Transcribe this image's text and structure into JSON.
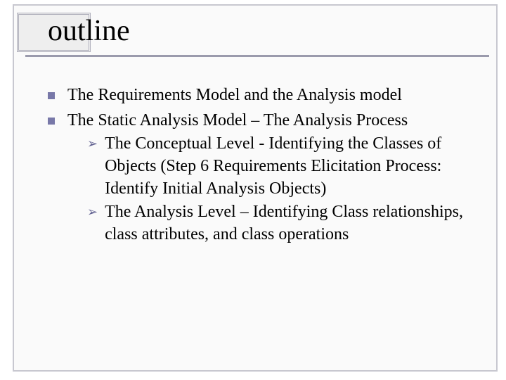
{
  "slide": {
    "title": "outline",
    "bullets": [
      {
        "text": "The Requirements Model and the Analysis model"
      },
      {
        "text": "The Static Analysis Model – The Analysis Process",
        "children": [
          {
            "text": "The Conceptual Level - Identifying the Classes of Objects (Step 6 Requirements Elicitation Process: Identify Initial Analysis Objects)"
          },
          {
            "text": "The Analysis Level –  Identifying Class relationships, class attributes, and class operations"
          }
        ]
      }
    ]
  },
  "style": {
    "background_color": "#ffffff",
    "inner_background_color": "#fafafa",
    "frame_border_color": "#c8c8d0",
    "title_box_border_color": "#b0b0bc",
    "title_box_fill": "#eeeeee",
    "title_color": "#000000",
    "title_fontsize": 42,
    "underline_color": "#9a9aac",
    "body_color": "#000000",
    "body_fontsize": 24,
    "square_bullet_color": "#7878a8",
    "square_bullet_size": 10,
    "arrow_bullet_color": "#606090",
    "arrow_bullet_glyph": "➢",
    "font_family": "Times New Roman"
  }
}
